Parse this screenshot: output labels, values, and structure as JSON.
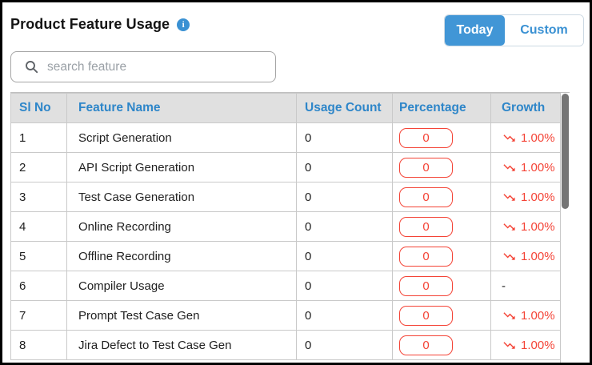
{
  "header": {
    "title": "Product Feature Usage",
    "toggle": {
      "today": "Today",
      "custom": "Custom",
      "active": "Today"
    }
  },
  "search": {
    "placeholder": "search feature"
  },
  "table": {
    "columns": [
      "Sl No",
      "Feature Name",
      "Usage Count",
      "Percentage",
      "Growth"
    ],
    "rows": [
      {
        "sl": "1",
        "feature": "Script Generation",
        "usage": "0",
        "percentage": "0",
        "growth": "1.00%",
        "growth_down": true
      },
      {
        "sl": "2",
        "feature": "API Script Generation",
        "usage": "0",
        "percentage": "0",
        "growth": "1.00%",
        "growth_down": true
      },
      {
        "sl": "3",
        "feature": "Test Case Generation",
        "usage": "0",
        "percentage": "0",
        "growth": "1.00%",
        "growth_down": true
      },
      {
        "sl": "4",
        "feature": "Online Recording",
        "usage": "0",
        "percentage": "0",
        "growth": "1.00%",
        "growth_down": true
      },
      {
        "sl": "5",
        "feature": "Offline Recording",
        "usage": "0",
        "percentage": "0",
        "growth": "1.00%",
        "growth_down": true
      },
      {
        "sl": "6",
        "feature": "Compiler Usage",
        "usage": "0",
        "percentage": "0",
        "growth": "-",
        "growth_down": false
      },
      {
        "sl": "7",
        "feature": "Prompt Test Case Gen",
        "usage": "0",
        "percentage": "0",
        "growth": "1.00%",
        "growth_down": true
      },
      {
        "sl": "8",
        "feature": "Jira Defect to Test Case Gen",
        "usage": "0",
        "percentage": "0",
        "growth": "1.00%",
        "growth_down": true
      }
    ]
  },
  "icons": {
    "title_info": "info-icon",
    "search": "search-icon",
    "growth": "trending-down-icon",
    "info_glyph": "i"
  },
  "colors": {
    "accent": "#3a91d3",
    "header_text": "#2e86c9",
    "today_bg": "#4196d6",
    "negative_red": "#f44336",
    "header_bg": "#e0e0e0",
    "grid": "#c9c9c9"
  }
}
